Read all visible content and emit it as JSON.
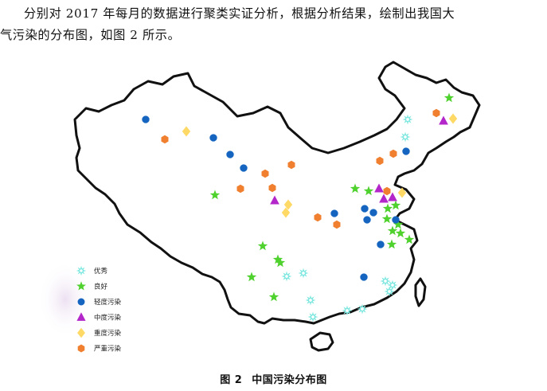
{
  "paragraph": {
    "line1": "分别对 2017 年每月的数据进行聚类实证分析，根据分析结果，绘制出我国大",
    "line2": "气污染的分布图，如图 2 所示。"
  },
  "legend": [
    {
      "key": "excellent",
      "label": "优秀",
      "shape": "star-burst",
      "color": "#7ee8e0"
    },
    {
      "key": "good",
      "label": "良好",
      "shape": "star",
      "color": "#4fd12e"
    },
    {
      "key": "light",
      "label": "轻度污染",
      "shape": "circle",
      "color": "#1565c0"
    },
    {
      "key": "moderate",
      "label": "中度污染",
      "shape": "triangle",
      "color": "#b326c9"
    },
    {
      "key": "heavy",
      "label": "重度污染",
      "shape": "diamond",
      "color": "#ffd966"
    },
    {
      "key": "severe",
      "label": "严重污染",
      "shape": "hexagon",
      "color": "#f08030"
    }
  ],
  "caption": {
    "figure_no": "图 2",
    "title": "中国污染分布图"
  }
}
